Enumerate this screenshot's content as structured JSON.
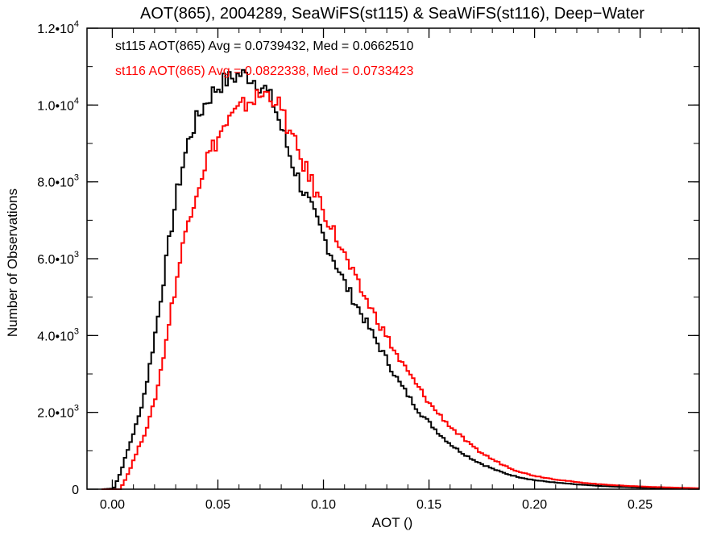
{
  "chart_data": {
    "type": "line",
    "title": "AOT(865), 2004289, SeaWiFS(st115) & SeaWiFS(st116), Deep−Water",
    "xlabel": "AOT ()",
    "ylabel": "Number of Observations",
    "xlim": [
      -0.012,
      0.278
    ],
    "ylim": [
      0,
      12000
    ],
    "x_ticks": [
      0.0,
      0.05,
      0.1,
      0.15,
      0.2,
      0.25
    ],
    "x_tick_labels": [
      "0.00",
      "0.05",
      "0.10",
      "0.15",
      "0.20",
      "0.25"
    ],
    "y_ticks": [
      {
        "value": 0,
        "mant": "0",
        "exp": ""
      },
      {
        "value": 2000,
        "mant": "2.0•10",
        "exp": "3"
      },
      {
        "value": 4000,
        "mant": "4.0•10",
        "exp": "3"
      },
      {
        "value": 6000,
        "mant": "6.0•10",
        "exp": "3"
      },
      {
        "value": 8000,
        "mant": "8.0•10",
        "exp": "3"
      },
      {
        "value": 10000,
        "mant": "1.0•10",
        "exp": "4"
      },
      {
        "value": 12000,
        "mant": "1.2•10",
        "exp": "4"
      }
    ],
    "grid": false,
    "step": true,
    "series": [
      {
        "name": "st115",
        "color": "#000000",
        "label": "st115 AOT(865) Avg = 0.0739432, Med = 0.0662510",
        "points": [
          [
            -0.005,
            0
          ],
          [
            0.0,
            20
          ],
          [
            0.003,
            400
          ],
          [
            0.006,
            900
          ],
          [
            0.009,
            1400
          ],
          [
            0.012,
            1900
          ],
          [
            0.015,
            2600
          ],
          [
            0.018,
            3500
          ],
          [
            0.021,
            4500
          ],
          [
            0.024,
            5600
          ],
          [
            0.027,
            6700
          ],
          [
            0.03,
            7700
          ],
          [
            0.033,
            8500
          ],
          [
            0.036,
            9200
          ],
          [
            0.04,
            9700
          ],
          [
            0.044,
            10100
          ],
          [
            0.048,
            10400
          ],
          [
            0.052,
            10600
          ],
          [
            0.056,
            10700
          ],
          [
            0.06,
            10800
          ],
          [
            0.064,
            10750
          ],
          [
            0.068,
            10600
          ],
          [
            0.072,
            10400
          ],
          [
            0.076,
            10000
          ],
          [
            0.08,
            9300
          ],
          [
            0.084,
            8600
          ],
          [
            0.088,
            8000
          ],
          [
            0.092,
            7500
          ],
          [
            0.096,
            7000
          ],
          [
            0.1,
            6500
          ],
          [
            0.105,
            5900
          ],
          [
            0.11,
            5300
          ],
          [
            0.115,
            4800
          ],
          [
            0.12,
            4300
          ],
          [
            0.125,
            3800
          ],
          [
            0.13,
            3300
          ],
          [
            0.135,
            2800
          ],
          [
            0.14,
            2400
          ],
          [
            0.145,
            2000
          ],
          [
            0.15,
            1700
          ],
          [
            0.155,
            1400
          ],
          [
            0.16,
            1150
          ],
          [
            0.165,
            950
          ],
          [
            0.17,
            780
          ],
          [
            0.175,
            640
          ],
          [
            0.18,
            520
          ],
          [
            0.185,
            420
          ],
          [
            0.19,
            340
          ],
          [
            0.195,
            280
          ],
          [
            0.2,
            230
          ],
          [
            0.21,
            170
          ],
          [
            0.22,
            120
          ],
          [
            0.23,
            85
          ],
          [
            0.24,
            60
          ],
          [
            0.25,
            40
          ],
          [
            0.26,
            25
          ],
          [
            0.27,
            15
          ],
          [
            0.278,
            10
          ]
        ]
      },
      {
        "name": "st116",
        "color": "#ff0000",
        "label": "st116 AOT(865) Avg = 0.0822338, Med = 0.0733423",
        "points": [
          [
            -0.005,
            0
          ],
          [
            0.003,
            0
          ],
          [
            0.006,
            300
          ],
          [
            0.009,
            700
          ],
          [
            0.012,
            1100
          ],
          [
            0.015,
            1500
          ],
          [
            0.018,
            2000
          ],
          [
            0.021,
            2700
          ],
          [
            0.024,
            3600
          ],
          [
            0.027,
            4600
          ],
          [
            0.03,
            5500
          ],
          [
            0.033,
            6400
          ],
          [
            0.036,
            7200
          ],
          [
            0.04,
            7900
          ],
          [
            0.044,
            8600
          ],
          [
            0.048,
            9000
          ],
          [
            0.052,
            9400
          ],
          [
            0.056,
            9700
          ],
          [
            0.06,
            9900
          ],
          [
            0.064,
            10100
          ],
          [
            0.068,
            10200
          ],
          [
            0.072,
            10300
          ],
          [
            0.076,
            10200
          ],
          [
            0.08,
            9800
          ],
          [
            0.084,
            9200
          ],
          [
            0.088,
            8700
          ],
          [
            0.092,
            8200
          ],
          [
            0.096,
            7700
          ],
          [
            0.1,
            7200
          ],
          [
            0.105,
            6600
          ],
          [
            0.11,
            6000
          ],
          [
            0.115,
            5400
          ],
          [
            0.12,
            4900
          ],
          [
            0.125,
            4400
          ],
          [
            0.13,
            3900
          ],
          [
            0.135,
            3400
          ],
          [
            0.14,
            3000
          ],
          [
            0.145,
            2600
          ],
          [
            0.15,
            2200
          ],
          [
            0.155,
            1900
          ],
          [
            0.16,
            1600
          ],
          [
            0.165,
            1350
          ],
          [
            0.17,
            1100
          ],
          [
            0.175,
            920
          ],
          [
            0.18,
            760
          ],
          [
            0.185,
            620
          ],
          [
            0.19,
            500
          ],
          [
            0.195,
            410
          ],
          [
            0.2,
            340
          ],
          [
            0.21,
            250
          ],
          [
            0.22,
            180
          ],
          [
            0.23,
            130
          ],
          [
            0.24,
            95
          ],
          [
            0.25,
            70
          ],
          [
            0.26,
            50
          ],
          [
            0.27,
            35
          ],
          [
            0.278,
            25
          ]
        ]
      }
    ]
  }
}
